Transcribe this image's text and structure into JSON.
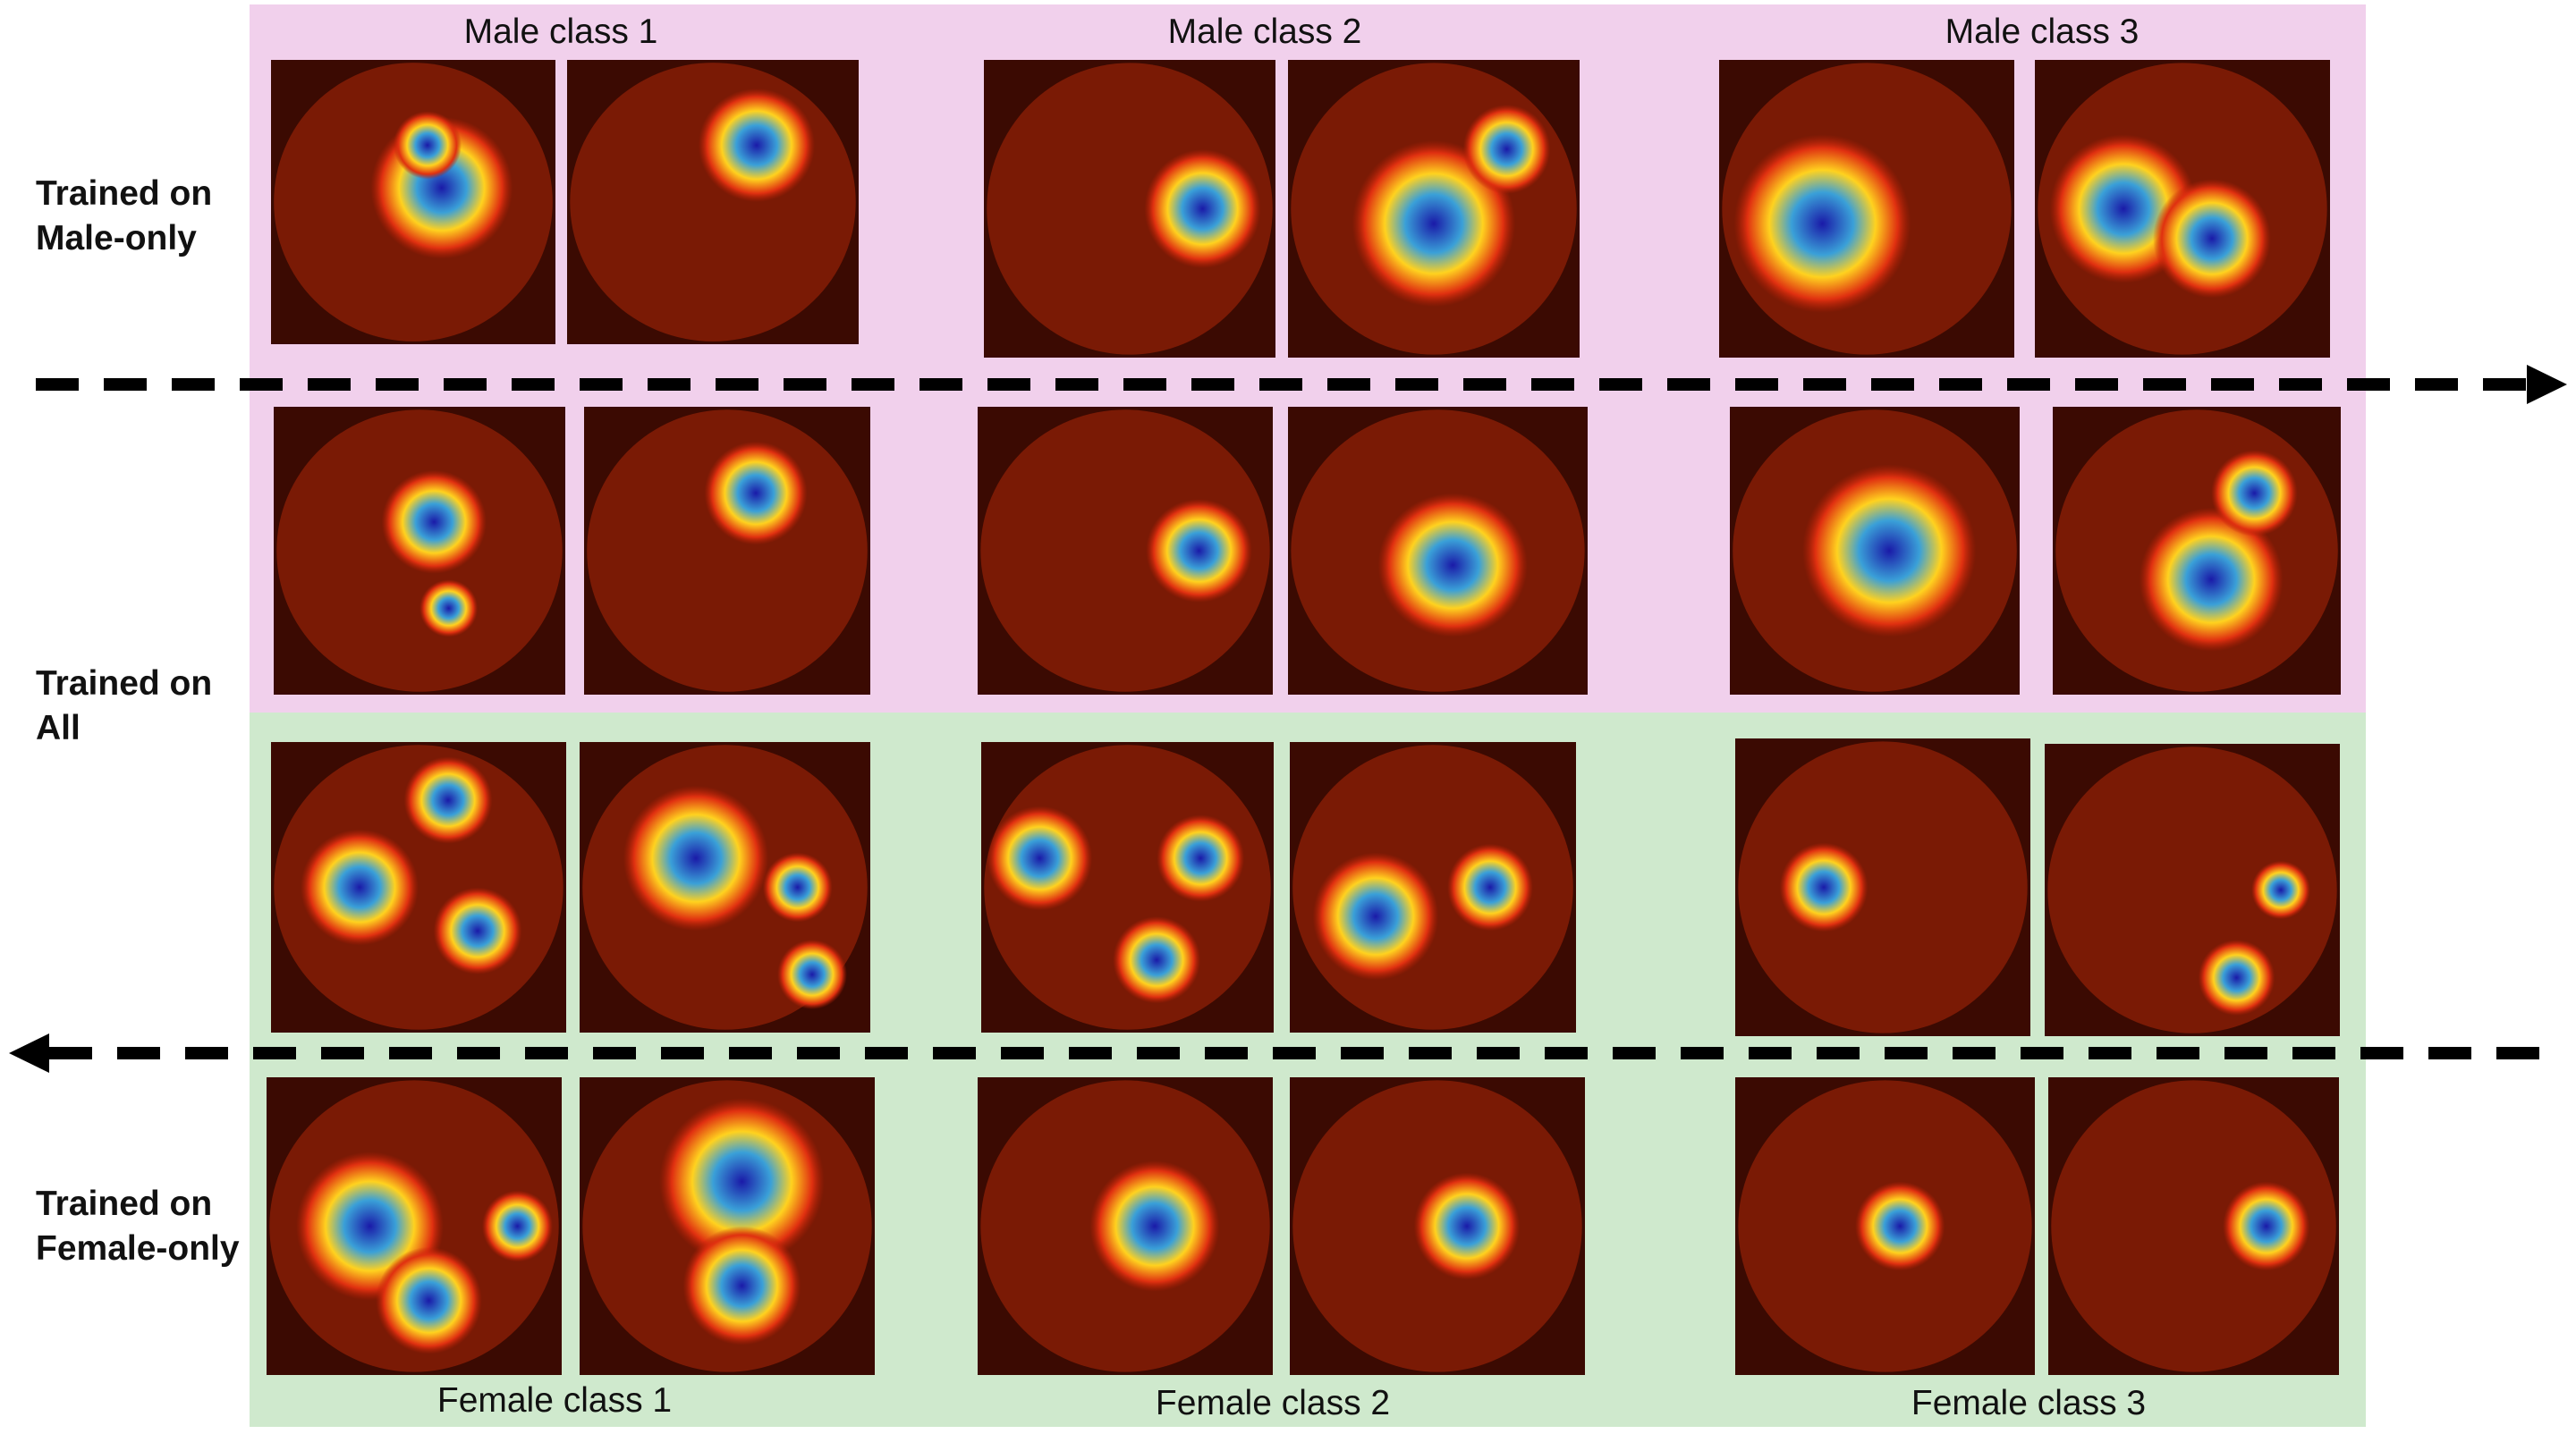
{
  "column_titles_top": [
    "Male class 1",
    "Male class 2",
    "Male class 3"
  ],
  "column_titles_bottom": [
    "Female class 1",
    "Female class 2",
    "Female class 3"
  ],
  "row_labels": {
    "male_only": [
      "Trained on",
      "Male-only"
    ],
    "all": [
      "Trained on",
      "All"
    ],
    "female_only": [
      "Trained on",
      "Female-only"
    ]
  },
  "colors": {
    "male_band": "#f1d0ec",
    "female_band": "#cfe9cd",
    "heatmap_low": "#7a1a05",
    "heatmap_mid": "#ffd21f",
    "heatmap_high": "#1a1aa8",
    "arrow": "#000000"
  },
  "arrows": [
    {
      "direction": "right",
      "meaning": "male"
    },
    {
      "direction": "left",
      "meaning": "female"
    }
  ],
  "image_grid": {
    "rows": [
      "male_only",
      "all_male",
      "all_female",
      "female_only"
    ],
    "columns": [
      "class1_a",
      "class1_b",
      "class2_a",
      "class2_b",
      "class3_a",
      "class3_b"
    ],
    "content": "fundus photographs with Grad-CAM heatmap overlays"
  }
}
